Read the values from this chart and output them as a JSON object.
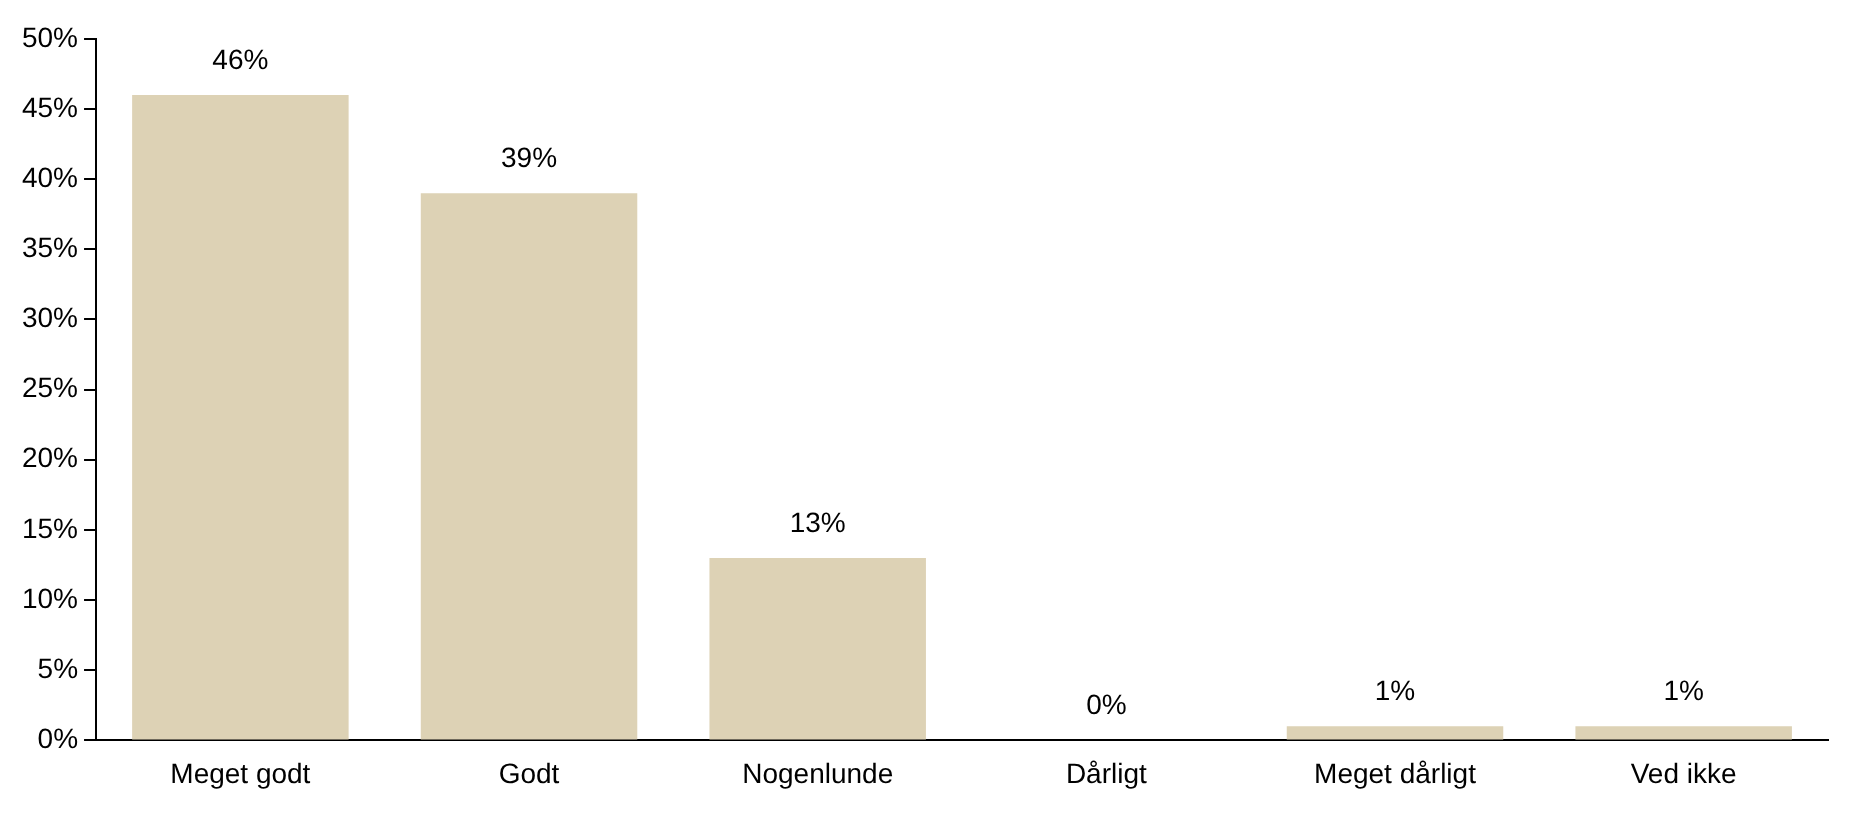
{
  "chart_data": {
    "type": "bar",
    "categories": [
      "Meget godt",
      "Godt",
      "Nogenlunde",
      "Dårligt",
      "Meget dårligt",
      "Ved ikke"
    ],
    "values": [
      46,
      39,
      13,
      0,
      1,
      1
    ],
    "value_labels": [
      "46%",
      "39%",
      "13%",
      "0%",
      "1%",
      "1%"
    ],
    "color": "#ddd2b5",
    "ylim": [
      0,
      50
    ],
    "yticks": [
      {
        "value": 0,
        "label": "0%"
      },
      {
        "value": 5,
        "label": "5%"
      },
      {
        "value": 10,
        "label": "10%"
      },
      {
        "value": 15,
        "label": "15%"
      },
      {
        "value": 20,
        "label": "20%"
      },
      {
        "value": 25,
        "label": "25%"
      },
      {
        "value": 30,
        "label": "30%"
      },
      {
        "value": 35,
        "label": "35%"
      },
      {
        "value": 40,
        "label": "40%"
      },
      {
        "value": 45,
        "label": "45%"
      },
      {
        "value": 50,
        "label": "50%"
      }
    ],
    "grid": false,
    "legend": false
  }
}
